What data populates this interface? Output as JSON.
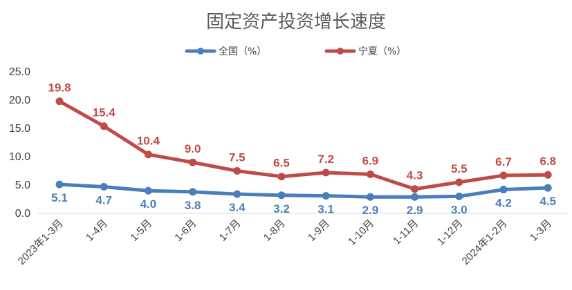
{
  "chart_data": {
    "type": "line",
    "title": "固定资产投资增长速度",
    "categories": [
      "2023年1-3月",
      "1-4月",
      "1-5月",
      "1-6月",
      "1-7月",
      "1-8月",
      "1-9月",
      "1-10月",
      "1-11月",
      "1-12月",
      "2024年1-2月",
      "1-3月"
    ],
    "series": [
      {
        "name": "全国（%）",
        "color": "#4a7ebb",
        "values": [
          5.1,
          4.7,
          4.0,
          3.8,
          3.4,
          3.2,
          3.1,
          2.9,
          2.9,
          3.0,
          4.2,
          4.5
        ],
        "labels": [
          "5.1",
          "4.7",
          "4.0",
          "3.8",
          "3.4",
          "3.2",
          "3.1",
          "2.9",
          "2.9",
          "3.0",
          "4.2",
          "4.5"
        ],
        "label_position": "below"
      },
      {
        "name": "宁夏（%）",
        "color": "#be4b48",
        "values": [
          19.8,
          15.4,
          10.4,
          9.0,
          7.5,
          6.5,
          7.2,
          6.9,
          4.3,
          5.5,
          6.7,
          6.8
        ],
        "labels": [
          "19.8",
          "15.4",
          "10.4",
          "9.0",
          "7.5",
          "6.5",
          "7.2",
          "6.9",
          "4.3",
          "5.5",
          "6.7",
          "6.8"
        ],
        "label_position": "above"
      }
    ],
    "y_ticks": [
      "0.0",
      "5.0",
      "10.0",
      "15.0",
      "20.0",
      "25.0"
    ],
    "ylim": [
      0,
      25
    ],
    "grid": false,
    "legend": "top-center"
  }
}
